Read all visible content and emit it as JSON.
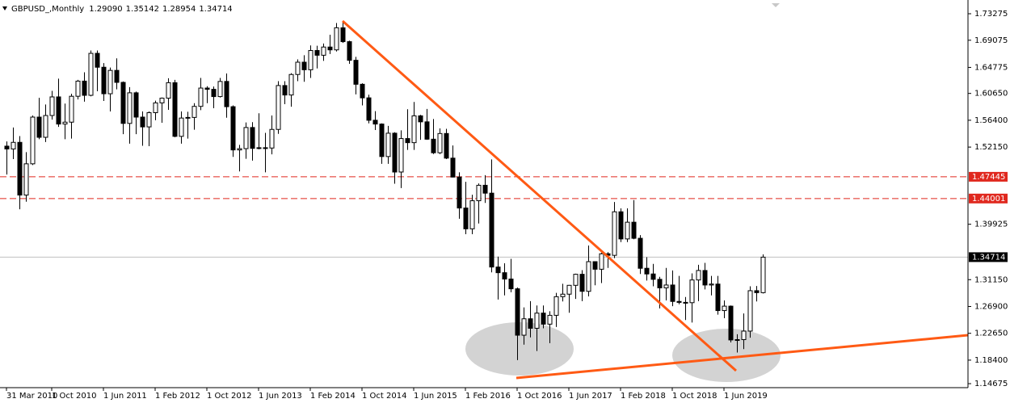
{
  "chart_data": {
    "type": "candlestick",
    "title": "GBPUSD_,Monthly",
    "header_values": [
      "1.29090",
      "1.35142",
      "1.28954",
      "1.34714"
    ],
    "categories": [
      "31 Mar 2010",
      null,
      null,
      null,
      null,
      null,
      null,
      "1 Oct 2010",
      null,
      null,
      null,
      null,
      null,
      null,
      null,
      "1 Jun 2011",
      null,
      null,
      null,
      null,
      null,
      null,
      null,
      "1 Feb 2012",
      null,
      null,
      null,
      null,
      null,
      null,
      null,
      "1 Oct 2012",
      null,
      null,
      null,
      null,
      null,
      null,
      null,
      "1 Jun 2013",
      null,
      null,
      null,
      null,
      null,
      null,
      null,
      "1 Feb 2014",
      null,
      null,
      null,
      null,
      null,
      null,
      null,
      "1 Oct 2014",
      null,
      null,
      null,
      null,
      null,
      null,
      null,
      "1 Jun 2015",
      null,
      null,
      null,
      null,
      null,
      null,
      null,
      "1 Feb 2016",
      null,
      null,
      null,
      null,
      null,
      null,
      null,
      "1 Oct 2016",
      null,
      null,
      null,
      null,
      null,
      null,
      null,
      "1 Jun 2017",
      null,
      null,
      null,
      null,
      null,
      null,
      null,
      "1 Feb 2018",
      null,
      null,
      null,
      null,
      null,
      null,
      null,
      "1 Oct 2018",
      null,
      null,
      null,
      null,
      null,
      null,
      null,
      "1 Jun 2019",
      null,
      null,
      null,
      null,
      null,
      null
    ],
    "open": [
      1.523,
      1.5185,
      1.529,
      1.4455,
      1.495,
      1.569,
      1.537,
      1.5715,
      1.601,
      1.558,
      1.561,
      1.602,
      1.626,
      1.6035,
      1.67,
      1.648,
      1.606,
      1.643,
      1.624,
      1.559,
      1.6075,
      1.569,
      1.5535,
      1.576,
      1.5915,
      1.599,
      1.6235,
      1.5385,
      1.5675,
      1.5685,
      1.586,
      1.615,
      1.613,
      1.6015,
      1.6255,
      1.5855,
      1.517,
      1.519,
      1.5525,
      1.5195,
      1.5205,
      1.52,
      1.5495,
      1.619,
      1.604,
      1.6365,
      1.656,
      1.644,
      1.6745,
      1.667,
      1.68,
      1.6755,
      1.7105,
      1.6885,
      1.659,
      1.621,
      1.5995,
      1.564,
      1.558,
      1.5065,
      1.5435,
      1.482,
      1.535,
      1.5285,
      1.571,
      1.5615,
      1.534,
      1.5125,
      1.543,
      1.504,
      1.474,
      1.425,
      1.392,
      1.4365,
      1.461,
      1.4485,
      1.3315,
      1.3225,
      1.3125,
      1.297,
      1.2235,
      1.2495,
      1.2345,
      1.2585,
      1.241,
      1.255,
      1.2845,
      1.2885,
      1.3025,
      1.32,
      1.293,
      1.34,
      1.328,
      1.3525,
      1.35,
      1.419,
      1.376,
      1.4025,
      1.377,
      1.3295,
      1.3205,
      1.312,
      1.2985,
      1.303,
      1.277,
      1.2755,
      1.275,
      1.311,
      1.326,
      1.303,
      1.3045,
      1.2625,
      1.2695,
      1.216,
      1.2165,
      1.23,
      1.294,
      1.2909
    ],
    "high": [
      1.5305,
      1.5525,
      1.539,
      1.5135,
      1.5715,
      1.5995,
      1.589,
      1.6105,
      1.63,
      1.5905,
      1.606,
      1.628,
      1.64,
      1.6745,
      1.6745,
      1.6545,
      1.6475,
      1.662,
      1.6255,
      1.6165,
      1.6095,
      1.578,
      1.578,
      1.595,
      1.6,
      1.6305,
      1.628,
      1.578,
      1.5775,
      1.591,
      1.631,
      1.618,
      1.6175,
      1.631,
      1.638,
      1.5875,
      1.525,
      1.5605,
      1.561,
      1.575,
      1.544,
      1.5715,
      1.626,
      1.626,
      1.6385,
      1.6605,
      1.667,
      1.6825,
      1.682,
      1.6855,
      1.6995,
      1.718,
      1.719,
      1.69,
      1.6645,
      1.6225,
      1.6045,
      1.5785,
      1.559,
      1.555,
      1.545,
      1.548,
      1.5815,
      1.593,
      1.5725,
      1.582,
      1.566,
      1.551,
      1.5505,
      1.524,
      1.4815,
      1.4665,
      1.446,
      1.464,
      1.477,
      1.502,
      1.348,
      1.3375,
      1.3445,
      1.299,
      1.2675,
      1.2775,
      1.2705,
      1.2705,
      1.2615,
      1.2905,
      1.305,
      1.303,
      1.321,
      1.3265,
      1.3655,
      1.3405,
      1.354,
      1.355,
      1.4345,
      1.4245,
      1.4245,
      1.4375,
      1.382,
      1.347,
      1.3365,
      1.316,
      1.33,
      1.326,
      1.3175,
      1.284,
      1.3215,
      1.335,
      1.338,
      1.3175,
      1.3175,
      1.2785,
      1.2705,
      1.225,
      1.258,
      1.301,
      1.3015,
      1.35142
    ],
    "low": [
      1.478,
      1.5025,
      1.423,
      1.435,
      1.493,
      1.534,
      1.5295,
      1.565,
      1.5535,
      1.534,
      1.535,
      1.597,
      1.5935,
      1.602,
      1.61,
      1.5945,
      1.578,
      1.613,
      1.542,
      1.527,
      1.542,
      1.5235,
      1.523,
      1.564,
      1.56,
      1.5805,
      1.537,
      1.527,
      1.535,
      1.549,
      1.58,
      1.591,
      1.583,
      1.6,
      1.568,
      1.506,
      1.483,
      1.503,
      1.5,
      1.518,
      1.4815,
      1.51,
      1.5425,
      1.5895,
      1.5855,
      1.626,
      1.625,
      1.631,
      1.646,
      1.658,
      1.669,
      1.673,
      1.6865,
      1.6535,
      1.605,
      1.5875,
      1.559,
      1.5485,
      1.495,
      1.495,
      1.4635,
      1.4565,
      1.517,
      1.517,
      1.533,
      1.533,
      1.5105,
      1.5105,
      1.5025,
      1.4735,
      1.408,
      1.3835,
      1.3835,
      1.4005,
      1.433,
      1.323,
      1.28,
      1.2865,
      1.2915,
      1.184,
      1.2085,
      1.22,
      1.1985,
      1.2345,
      1.211,
      1.2365,
      1.277,
      1.259,
      1.281,
      1.2775,
      1.285,
      1.3025,
      1.306,
      1.33,
      1.3455,
      1.371,
      1.371,
      1.3755,
      1.3205,
      1.31,
      1.301,
      1.266,
      1.2785,
      1.2695,
      1.2725,
      1.2475,
      1.2435,
      1.2775,
      1.296,
      1.2865,
      1.256,
      1.2505,
      1.212,
      1.196,
      1.2015,
      1.2195,
      1.277,
      1.28954
    ],
    "close": [
      1.5185,
      1.529,
      1.4455,
      1.495,
      1.569,
      1.537,
      1.5715,
      1.601,
      1.558,
      1.561,
      1.602,
      1.626,
      1.6035,
      1.67,
      1.648,
      1.606,
      1.643,
      1.624,
      1.559,
      1.6075,
      1.569,
      1.5535,
      1.576,
      1.5915,
      1.599,
      1.6235,
      1.5385,
      1.5675,
      1.5685,
      1.586,
      1.615,
      1.613,
      1.6015,
      1.6255,
      1.5855,
      1.517,
      1.519,
      1.5525,
      1.5195,
      1.5205,
      1.52,
      1.5495,
      1.619,
      1.604,
      1.6365,
      1.656,
      1.644,
      1.6745,
      1.667,
      1.68,
      1.6755,
      1.7105,
      1.6885,
      1.659,
      1.621,
      1.5995,
      1.564,
      1.558,
      1.5065,
      1.5435,
      1.482,
      1.535,
      1.5285,
      1.571,
      1.5615,
      1.534,
      1.5125,
      1.543,
      1.504,
      1.474,
      1.425,
      1.392,
      1.4365,
      1.461,
      1.4485,
      1.3315,
      1.3225,
      1.3125,
      1.297,
      1.2235,
      1.2495,
      1.2345,
      1.2585,
      1.241,
      1.255,
      1.2845,
      1.2885,
      1.3025,
      1.32,
      1.293,
      1.34,
      1.328,
      1.3525,
      1.35,
      1.419,
      1.376,
      1.4025,
      1.377,
      1.3295,
      1.3205,
      1.312,
      1.2985,
      1.303,
      1.277,
      1.2755,
      1.275,
      1.311,
      1.326,
      1.303,
      1.3045,
      1.2625,
      1.2695,
      1.216,
      1.2165,
      1.23,
      1.294,
      1.2909,
      1.34714
    ],
    "colors": {
      "up": "#ffffff",
      "down": "#000000",
      "wick": "#000000"
    },
    "ylim": [
      1.1404,
      1.7545
    ],
    "yticks": [
      1.73275,
      1.69075,
      1.64775,
      {
        "value": 1.6065,
        "label": "1.60650"
      },
      {
        "value": 1.564,
        "label": "1.56400"
      },
      {
        "value": 1.5215,
        "label": "1.52150"
      },
      1.39925,
      {
        "value": 1.3115,
        "label": "1.31150"
      },
      {
        "value": 1.269,
        "label": "1.26900"
      },
      {
        "value": 1.2265,
        "label": "1.22650"
      },
      {
        "value": 1.184,
        "label": "1.18400"
      },
      1.14675
    ],
    "hlines": [
      {
        "value": 1.47445,
        "color": "#e0281e"
      },
      {
        "value": 1.44001,
        "color": "#e0281e"
      }
    ],
    "last_price": {
      "value": 1.34714,
      "color": "#c0c0c0"
    }
  }
}
